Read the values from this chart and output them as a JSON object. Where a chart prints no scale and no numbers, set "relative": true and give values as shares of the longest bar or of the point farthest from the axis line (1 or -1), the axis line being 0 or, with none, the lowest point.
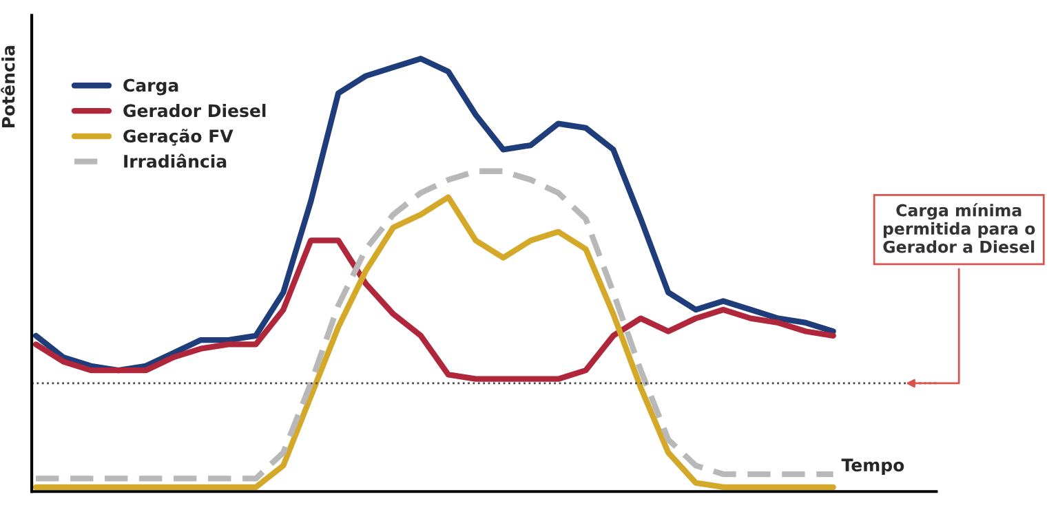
{
  "chart_data": {
    "type": "line",
    "relative": true,
    "ylabel": "Potência",
    "xlabel": "Tempo",
    "legend": "top left",
    "grid": false,
    "categories": [
      null,
      null,
      null,
      null,
      null,
      null,
      null,
      null,
      null,
      null,
      null,
      null,
      null,
      null,
      null,
      null,
      null,
      null,
      null,
      null,
      null,
      null,
      null,
      null,
      null,
      null,
      null,
      null,
      null,
      null
    ],
    "series": [
      {
        "name": "Carga",
        "color": "#1f3d7a",
        "values": [
          0.36,
          0.31,
          0.29,
          0.28,
          0.29,
          0.32,
          0.35,
          0.35,
          0.36,
          0.46,
          0.67,
          0.92,
          0.96,
          0.98,
          1.0,
          0.97,
          0.87,
          0.79,
          0.8,
          0.85,
          0.84,
          0.79,
          0.63,
          0.46,
          0.42,
          0.44,
          0.42,
          0.4,
          0.39,
          0.37
        ]
      },
      {
        "name": "Gerador Diesel",
        "color": "#b0263a",
        "values": [
          0.34,
          0.3,
          0.28,
          0.28,
          0.28,
          0.31,
          0.33,
          0.34,
          0.34,
          0.42,
          0.58,
          0.58,
          0.48,
          0.41,
          0.36,
          0.27,
          0.26,
          0.26,
          0.26,
          0.26,
          0.28,
          0.36,
          0.4,
          0.37,
          0.4,
          0.42,
          0.4,
          0.39,
          0.37,
          0.36
        ]
      },
      {
        "name": "Geração FV",
        "color": "#d4a92a",
        "values": [
          0.01,
          0.01,
          0.01,
          0.01,
          0.01,
          0.01,
          0.01,
          0.01,
          0.01,
          0.06,
          0.22,
          0.38,
          0.51,
          0.61,
          0.64,
          0.68,
          0.58,
          0.54,
          0.58,
          0.6,
          0.56,
          0.41,
          0.24,
          0.09,
          0.02,
          0.01,
          0.01,
          0.01,
          0.01,
          0.01
        ]
      },
      {
        "name": "Irradiância",
        "color": "#b8b8b8",
        "line_style": "dashed",
        "values": [
          0.03,
          0.03,
          0.03,
          0.03,
          0.03,
          0.03,
          0.03,
          0.03,
          0.03,
          0.09,
          0.25,
          0.43,
          0.56,
          0.64,
          0.69,
          0.72,
          0.74,
          0.74,
          0.72,
          0.69,
          0.63,
          0.46,
          0.28,
          0.12,
          0.06,
          0.04,
          0.04,
          0.04,
          0.04,
          0.04
        ]
      }
    ],
    "ref_lines": [
      {
        "axis": "y",
        "value": 0.25,
        "label": "Carga mínima\npermitida para o\nGerador a Diesel",
        "color": "#444444",
        "line_style": "dotted"
      }
    ]
  }
}
